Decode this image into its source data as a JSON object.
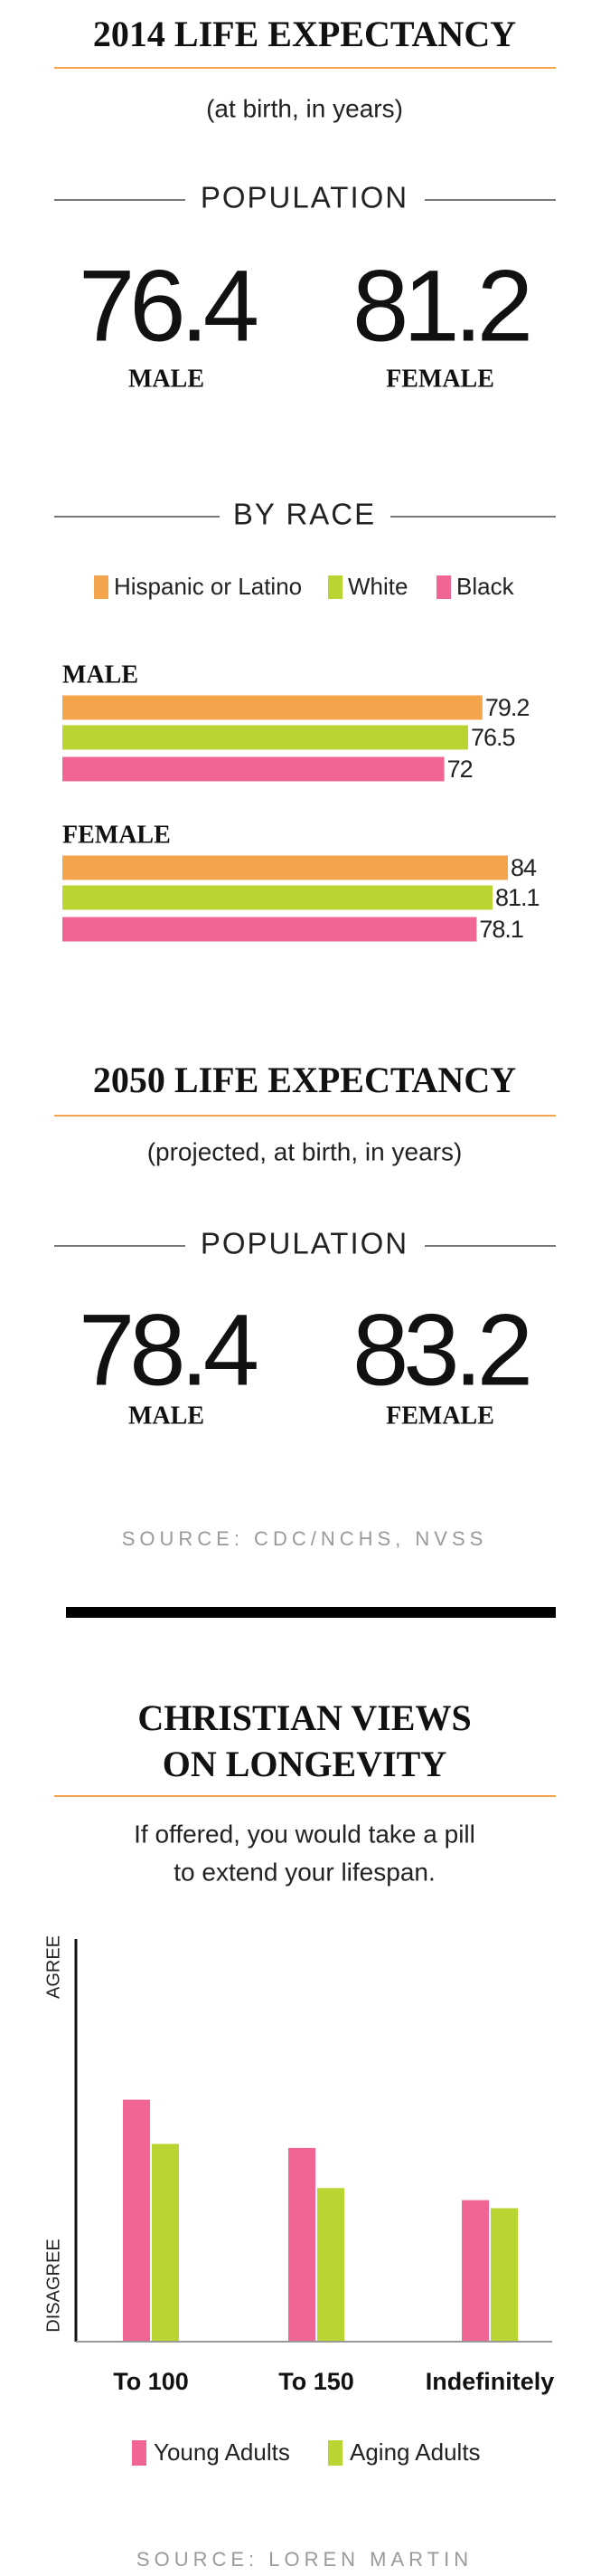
{
  "life_2014": {
    "title": "2014 LIFE EXPECTANCY",
    "subtitle": "(at birth, in years)",
    "population_heading": "POPULATION",
    "male": 76.4,
    "male_label": "MALE",
    "female": 81.2,
    "female_label": "FEMALE",
    "race_heading": "BY RACE"
  },
  "life_2050": {
    "title": "2050 LIFE EXPECTANCY",
    "subtitle": "(projected, at birth, in years)",
    "population_heading": "POPULATION",
    "male": 78.4,
    "male_label": "MALE",
    "female": 83.2,
    "female_label": "FEMALE",
    "source": "SOURCE: CDC/NCHS, NVSS"
  },
  "chart_data": [
    {
      "type": "hbar",
      "categories": [
        "MALE",
        "FEMALE"
      ],
      "xlim": [
        0,
        84
      ],
      "series": [
        {
          "name": "Hispanic or Latino",
          "color": "#f4a54b",
          "values": [
            79.2,
            84
          ]
        },
        {
          "name": "White",
          "color": "#b9d531",
          "values": [
            76.5,
            81.1
          ]
        },
        {
          "name": "Black",
          "color": "#f06594",
          "values": [
            72,
            78.1
          ]
        }
      ]
    },
    {
      "type": "bar",
      "title_lines": [
        "CHRISTIAN VIEWS",
        "ON LONGEVITY"
      ],
      "subtitle_lines": [
        "If offered, you would take a pill",
        "to extend your lifespan."
      ],
      "y_top_label": "AGREE",
      "y_bottom_label": "DISAGREE",
      "categories": [
        "To 100",
        "To 150",
        "Indefinitely"
      ],
      "ylim": [
        0,
        100
      ],
      "series": [
        {
          "name": "Young Adults",
          "color": "#f06594",
          "values": [
            60,
            48,
            35
          ]
        },
        {
          "name": "Aging Adults",
          "color": "#b9d531",
          "values": [
            49,
            38,
            33
          ]
        }
      ],
      "source": "SOURCE: LOREN MARTIN"
    }
  ]
}
